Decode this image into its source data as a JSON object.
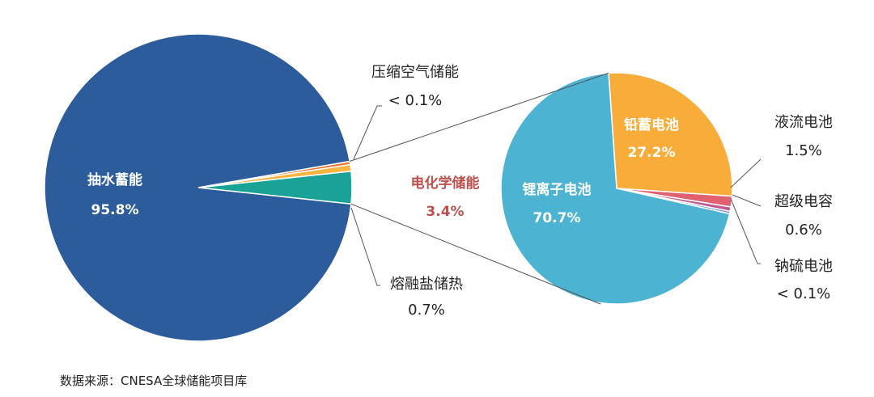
{
  "chart_data": [
    {
      "type": "pie",
      "title": "",
      "slices": [
        {
          "label": "抽水蓄能",
          "value": 95.8,
          "value_label": "95.8%",
          "color": "#2c5c9b"
        },
        {
          "label": "熔融盐储热",
          "value": 0.7,
          "value_label": "0.7%",
          "color": "#f7b440"
        },
        {
          "label": "电化学储能",
          "value": 3.4,
          "value_label": "3.4%",
          "color": "#18a396"
        },
        {
          "label": "压缩空气储能",
          "value": 0.05,
          "value_label": "< 0.1%",
          "color": "#e8743b"
        }
      ]
    },
    {
      "type": "pie",
      "title": "",
      "slices": [
        {
          "label": "锂离子电池",
          "value": 70.7,
          "value_label": "70.7%",
          "color": "#4cb3d3"
        },
        {
          "label": "铅蓄电池",
          "value": 27.2,
          "value_label": "27.2%",
          "color": "#f8ad3a"
        },
        {
          "label": "液流电池",
          "value": 1.5,
          "value_label": "1.5%",
          "color": "#e06271"
        },
        {
          "label": "超级电容",
          "value": 0.6,
          "value_label": "0.6%",
          "color": "#c05b8f"
        },
        {
          "label": "钠硫电池",
          "value": 0.05,
          "value_label": "< 0.1%",
          "color": "#6a8fd1"
        }
      ]
    }
  ],
  "source": "数据来源：CNESA全球储能项目库"
}
